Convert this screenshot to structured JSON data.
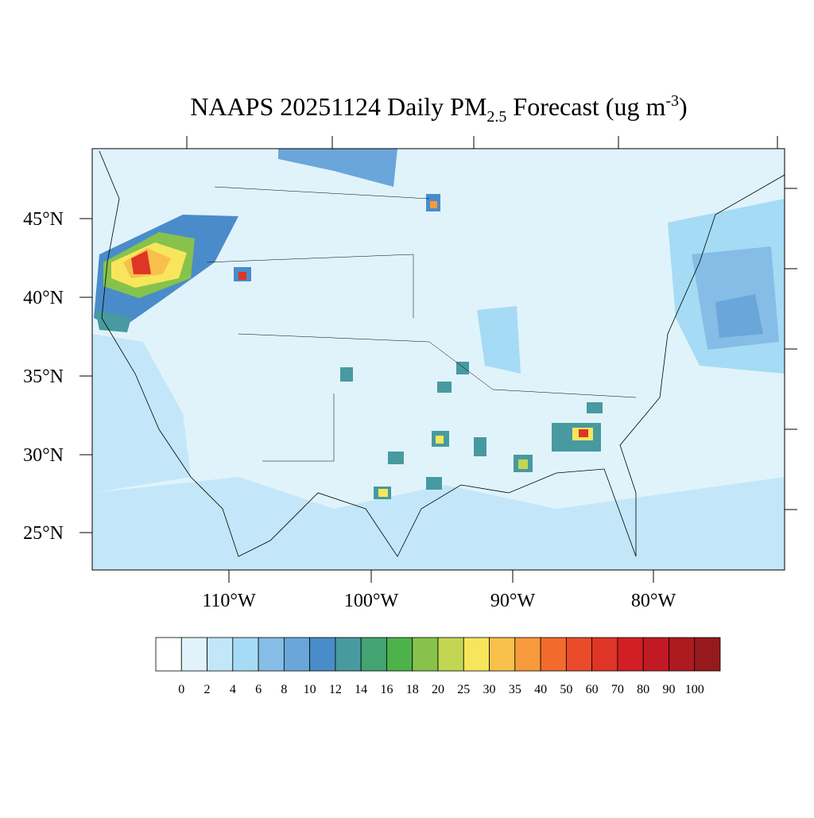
{
  "title": {
    "main": "NAAPS 20251124 Daily PM",
    "sub": "2.5",
    "rest": " Forecast (ug m",
    "sup": "-3",
    "close": ")"
  },
  "lat_labels": [
    "45°N",
    "40°N",
    "35°N",
    "30°N",
    "25°N"
  ],
  "lon_labels": [
    "110°W",
    "100°W",
    "90°W",
    "80°W"
  ],
  "colorbar": {
    "levels": [
      0,
      2,
      4,
      6,
      8,
      10,
      12,
      14,
      16,
      18,
      20,
      25,
      30,
      35,
      40,
      50,
      60,
      70,
      80,
      90,
      100
    ],
    "colors": [
      "#ffffff",
      "#e0f3fb",
      "#c3e7f8",
      "#a6dbf5",
      "#86bde6",
      "#6aa6da",
      "#4a8cc9",
      "#479a9f",
      "#44a373",
      "#4bb34a",
      "#86c24c",
      "#c2d654",
      "#f7e65b",
      "#f8c04b",
      "#f69a3c",
      "#f26b2d",
      "#e94b2b",
      "#de3526",
      "#d21f26",
      "#c11a25",
      "#ad1a20",
      "#961a1d"
    ]
  }
}
